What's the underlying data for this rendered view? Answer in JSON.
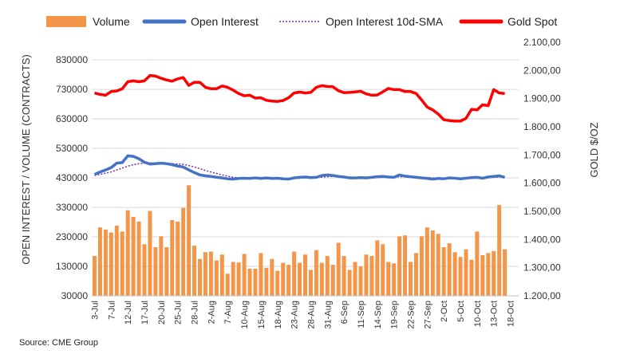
{
  "source": "Source: CME Group",
  "chart_data": {
    "type": "bar+line",
    "legend": [
      {
        "label": "Volume",
        "kind": "bar",
        "color": "#F4964A"
      },
      {
        "label": "Open Interest",
        "kind": "line",
        "color": "#4472C4"
      },
      {
        "label": "Open Interest 10d-SMA",
        "kind": "dotted",
        "color": "#7030A0"
      },
      {
        "label": "Gold Spot",
        "kind": "line",
        "color": "#FF0000"
      }
    ],
    "y_left": {
      "label": "OPEN INTEREST / VOLUME (CONTRACTS)",
      "min": 30000,
      "max": 890000,
      "ticks": [
        "30000",
        "130000",
        "230000",
        "330000",
        "430000",
        "530000",
        "630000",
        "730000",
        "830000"
      ]
    },
    "y_right": {
      "label": "GOLD $/OZ",
      "min": 1200,
      "max": 2100,
      "ticks": [
        "1.200,00",
        "1.300,00",
        "1.400,00",
        "1.500,00",
        "1.600,00",
        "1.700,00",
        "1.800,00",
        "1.900,00",
        "2.000,00",
        "2.100,00"
      ]
    },
    "x_ticks": [
      "3-Jul",
      "7-Jul",
      "12-Jul",
      "17-Jul",
      "20-Jul",
      "25-Jul",
      "28-Jul",
      "2-Aug",
      "7-Aug",
      "10-Aug",
      "15-Aug",
      "18-Aug",
      "23-Aug",
      "28-Aug",
      "31-Aug",
      "6-Sep",
      "11-Sep",
      "14-Sep",
      "19-Sep",
      "22-Sep",
      "27-Sep",
      "2-Oct",
      "5-Oct",
      "10-Oct",
      "13-Oct",
      "18-Oct"
    ],
    "x_tick_index": [
      0,
      3,
      6,
      9,
      12,
      15,
      18,
      21,
      24,
      27,
      30,
      33,
      36,
      39,
      42,
      45,
      48,
      51,
      54,
      57,
      60,
      63,
      66,
      69,
      72,
      75
    ],
    "n_slots": 77,
    "volume": [
      165000,
      262000,
      255000,
      245000,
      268000,
      248000,
      320000,
      298000,
      282000,
      205000,
      318000,
      195000,
      232000,
      195000,
      287000,
      282000,
      328000,
      405000,
      200000,
      155000,
      178000,
      180000,
      150000,
      170000,
      105000,
      145000,
      143000,
      172000,
      122000,
      122000,
      175000,
      125000,
      155000,
      115000,
      142000,
      135000,
      180000,
      142000,
      170000,
      118000,
      185000,
      142000,
      165000,
      135000,
      210000,
      165000,
      118000,
      145000,
      130000,
      170000,
      165000,
      218000,
      205000,
      145000,
      140000,
      232000,
      235000,
      145000,
      175000,
      232000,
      262000,
      252000,
      240000,
      195000,
      208000,
      178000,
      162000,
      188000,
      152000,
      248000,
      168000,
      175000,
      182000,
      338000,
      188000
    ],
    "open_interest": [
      442000,
      450000,
      457000,
      465000,
      480000,
      482000,
      505000,
      503000,
      495000,
      483000,
      477000,
      478000,
      480000,
      478000,
      475000,
      470000,
      467000,
      457000,
      448000,
      440000,
      437000,
      435000,
      432000,
      430000,
      427000,
      426000,
      428000,
      429000,
      428000,
      430000,
      428000,
      430000,
      428000,
      429000,
      427000,
      426000,
      430000,
      432000,
      433000,
      431000,
      432000,
      438000,
      440000,
      438000,
      435000,
      433000,
      430000,
      430000,
      431000,
      430000,
      432000,
      434000,
      435000,
      433000,
      432000,
      440000,
      436000,
      434000,
      432000,
      430000,
      428000,
      426000,
      428000,
      427000,
      430000,
      429000,
      427000,
      429000,
      431000,
      432000,
      429000,
      433000,
      435000,
      437000,
      432000
    ],
    "open_interest_sma": [
      438000,
      442000,
      446000,
      450000,
      457000,
      463000,
      470000,
      475000,
      478000,
      480000,
      481000,
      480000,
      479000,
      478000,
      478000,
      477000,
      476000,
      472000,
      467000,
      461000,
      455000,
      450000,
      445000,
      440000,
      436000,
      432000,
      430000,
      429000,
      428000,
      428000,
      428000,
      429000,
      429000,
      429000,
      428000,
      428000,
      428000,
      429000,
      430000,
      431000,
      432000,
      433000,
      434000,
      435000,
      435000,
      434000,
      433000,
      432000,
      432000,
      432000,
      432000,
      432000,
      432000,
      433000,
      433000,
      434000,
      434000,
      434000,
      433000,
      432000,
      431000,
      430000,
      429000,
      428000,
      428000,
      428000,
      428000,
      428000,
      429000,
      429000,
      430000,
      431000,
      432000,
      433000,
      433000
    ],
    "gold_spot": [
      1920,
      1915,
      1912,
      1925,
      1927,
      1935,
      1960,
      1963,
      1960,
      1963,
      1982,
      1980,
      1972,
      1966,
      1962,
      1970,
      1975,
      1947,
      1958,
      1958,
      1940,
      1935,
      1935,
      1945,
      1940,
      1930,
      1918,
      1910,
      1912,
      1902,
      1903,
      1894,
      1891,
      1890,
      1893,
      1903,
      1920,
      1923,
      1920,
      1922,
      1940,
      1946,
      1943,
      1942,
      1928,
      1921,
      1922,
      1924,
      1926,
      1917,
      1912,
      1913,
      1924,
      1936,
      1932,
      1932,
      1925,
      1925,
      1918,
      1895,
      1870,
      1860,
      1845,
      1825,
      1822,
      1820,
      1820,
      1830,
      1862,
      1860,
      1878,
      1875,
      1932,
      1920,
      1918
    ]
  }
}
